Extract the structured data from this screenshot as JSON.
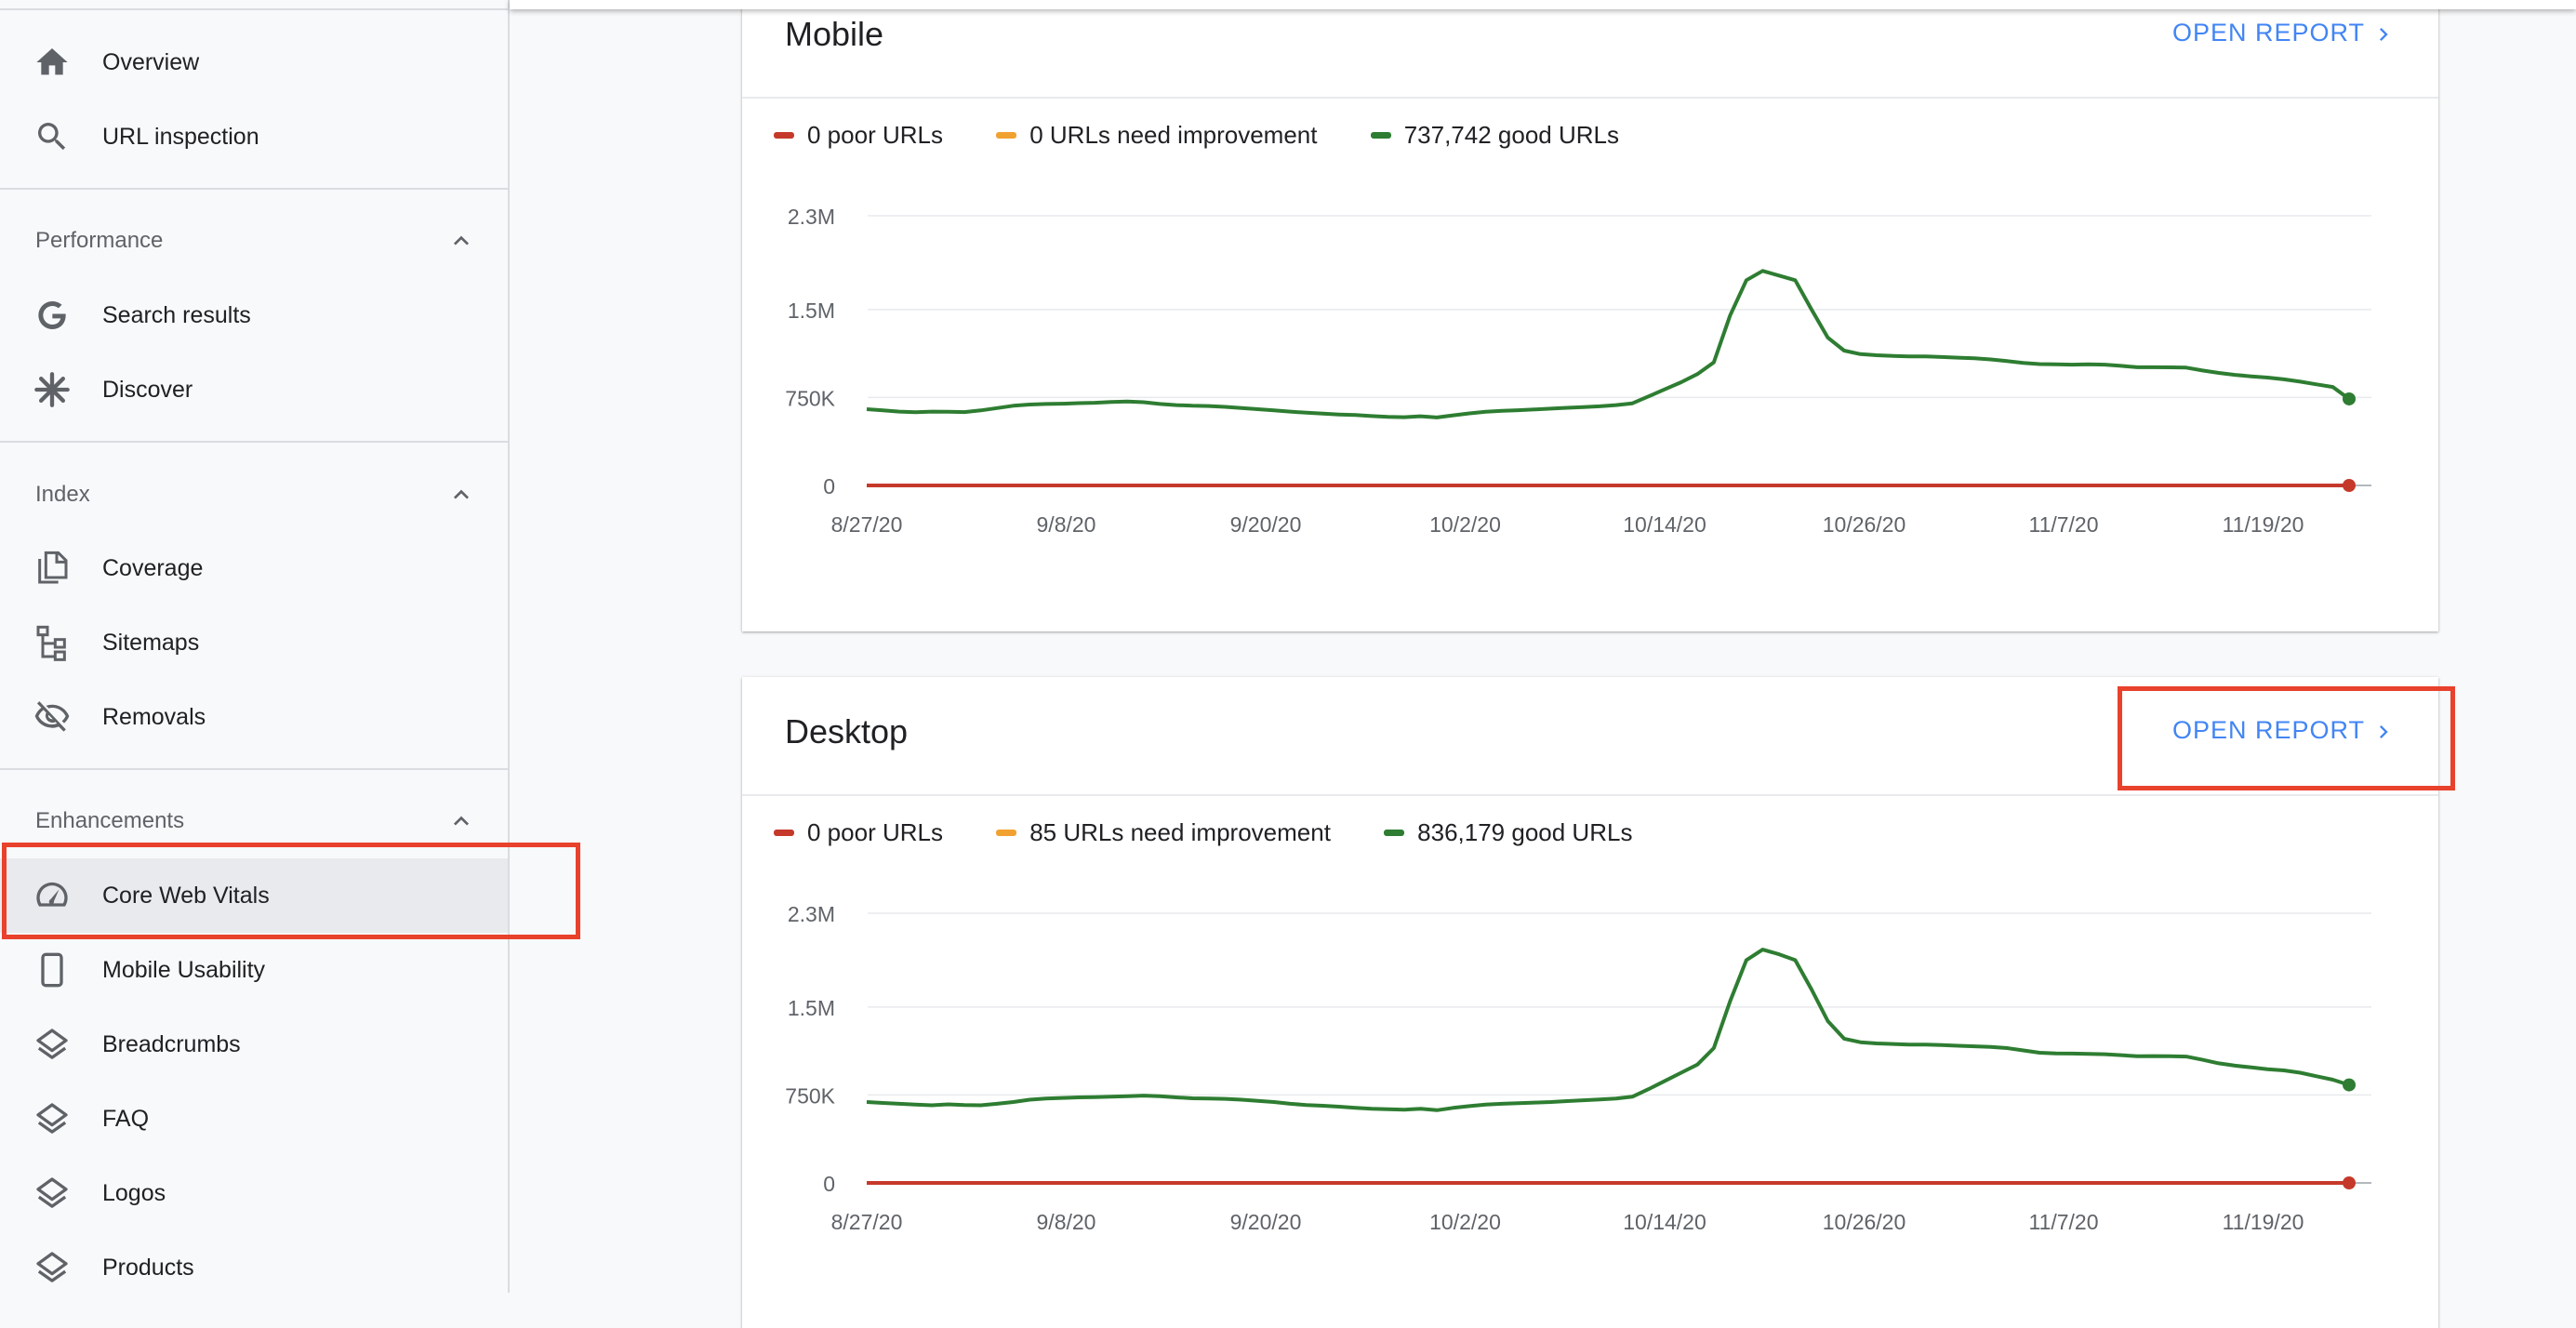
{
  "sidebar": {
    "top_items": [
      {
        "label": "Overview",
        "icon": "home-icon"
      },
      {
        "label": "URL inspection",
        "icon": "search-icon"
      }
    ],
    "sections": [
      {
        "title": "Performance",
        "items": [
          {
            "label": "Search results",
            "icon": "google-g-icon"
          },
          {
            "label": "Discover",
            "icon": "asterisk-icon"
          }
        ]
      },
      {
        "title": "Index",
        "items": [
          {
            "label": "Coverage",
            "icon": "file-copy-icon"
          },
          {
            "label": "Sitemaps",
            "icon": "sitemap-icon"
          },
          {
            "label": "Removals",
            "icon": "eye-off-icon"
          }
        ]
      },
      {
        "title": "Enhancements",
        "items": [
          {
            "label": "Core Web Vitals",
            "icon": "speedometer-icon",
            "active": true
          },
          {
            "label": "Mobile Usability",
            "icon": "phone-icon"
          },
          {
            "label": "Breadcrumbs",
            "icon": "layers-icon"
          },
          {
            "label": "FAQ",
            "icon": "layers-icon"
          },
          {
            "label": "Logos",
            "icon": "layers-icon"
          },
          {
            "label": "Products",
            "icon": "layers-icon"
          }
        ]
      }
    ]
  },
  "colors": {
    "poor": "#c5392b",
    "needs_improvement": "#f0a130",
    "good": "#2e7d32",
    "link": "#4285f4",
    "highlight": "#e8412c"
  },
  "cards": [
    {
      "title": "Mobile",
      "open_report": "OPEN REPORT",
      "legend": {
        "poor": "0 poor URLs",
        "needs_improvement": "0 URLs need improvement",
        "good": "737,742 good URLs"
      },
      "chart_data": {
        "type": "line",
        "y_ticks": [
          "2.3M",
          "1.5M",
          "750K",
          "0"
        ],
        "ylim": [
          0,
          2300000
        ],
        "x_ticks": [
          "8/27/20",
          "9/8/20",
          "9/20/20",
          "10/2/20",
          "10/14/20",
          "10/26/20",
          "11/7/20",
          "11/19/20"
        ],
        "x_start": "2020-08-27",
        "series": [
          {
            "name": "good URLs",
            "color": "#2e7d32",
            "values": [
              650000,
              640000,
              630000,
              625000,
              630000,
              628000,
              626000,
              640000,
              660000,
              680000,
              690000,
              695000,
              697000,
              702000,
              705000,
              712000,
              715000,
              710000,
              695000,
              685000,
              680000,
              677000,
              670000,
              660000,
              650000,
              640000,
              630000,
              620000,
              612000,
              605000,
              600000,
              592000,
              585000,
              582000,
              590000,
              580000,
              598000,
              615000,
              628000,
              637000,
              642000,
              648000,
              655000,
              662000,
              668000,
              675000,
              685000,
              700000,
              760000,
              820000,
              880000,
              950000,
              1050000,
              1450000,
              1750000,
              1830000,
              1790000,
              1750000,
              1500000,
              1260000,
              1150000,
              1120000,
              1110000,
              1105000,
              1100000,
              1100000,
              1095000,
              1090000,
              1085000,
              1075000,
              1060000,
              1045000,
              1035000,
              1033000,
              1030000,
              1033000,
              1030000,
              1020000,
              1008000,
              1008000,
              1007000,
              1005000,
              980000,
              960000,
              943000,
              930000,
              920000,
              905000,
              885000,
              862000,
              840000,
              737742
            ]
          },
          {
            "name": "poor URLs",
            "color": "#c5392b",
            "values": "zeros"
          }
        ]
      }
    },
    {
      "title": "Desktop",
      "open_report": "OPEN REPORT",
      "legend": {
        "poor": "0 poor URLs",
        "needs_improvement": "85 URLs need improvement",
        "good": "836,179 good URLs"
      },
      "chart_data": {
        "type": "line",
        "y_ticks": [
          "2.3M",
          "1.5M",
          "750K",
          "0"
        ],
        "ylim": [
          0,
          2300000
        ],
        "x_ticks": [
          "8/27/20",
          "9/8/20",
          "9/20/20",
          "10/2/20",
          "10/14/20",
          "10/26/20",
          "11/7/20",
          "11/19/20"
        ],
        "x_start": "2020-08-27",
        "series": [
          {
            "name": "good URLs",
            "color": "#2e7d32",
            "values": [
              690000,
              682000,
              675000,
              668000,
              662000,
              670000,
              665000,
              662000,
              675000,
              690000,
              710000,
              720000,
              725000,
              730000,
              732000,
              735000,
              740000,
              745000,
              740000,
              730000,
              722000,
              720000,
              717000,
              710000,
              700000,
              690000,
              675000,
              665000,
              658000,
              650000,
              640000,
              632000,
              628000,
              625000,
              632000,
              620000,
              640000,
              655000,
              668000,
              675000,
              680000,
              685000,
              690000,
              698000,
              705000,
              712000,
              720000,
              735000,
              800000,
              870000,
              940000,
              1010000,
              1150000,
              1550000,
              1900000,
              1990000,
              1950000,
              1900000,
              1650000,
              1380000,
              1230000,
              1200000,
              1190000,
              1185000,
              1180000,
              1180000,
              1175000,
              1170000,
              1165000,
              1160000,
              1150000,
              1130000,
              1110000,
              1105000,
              1103000,
              1100000,
              1098000,
              1090000,
              1080000,
              1082000,
              1080000,
              1078000,
              1050000,
              1020000,
              1000000,
              985000,
              970000,
              960000,
              940000,
              910000,
              880000,
              836179
            ]
          },
          {
            "name": "poor URLs",
            "color": "#c5392b",
            "values": "zeros"
          }
        ]
      }
    }
  ]
}
